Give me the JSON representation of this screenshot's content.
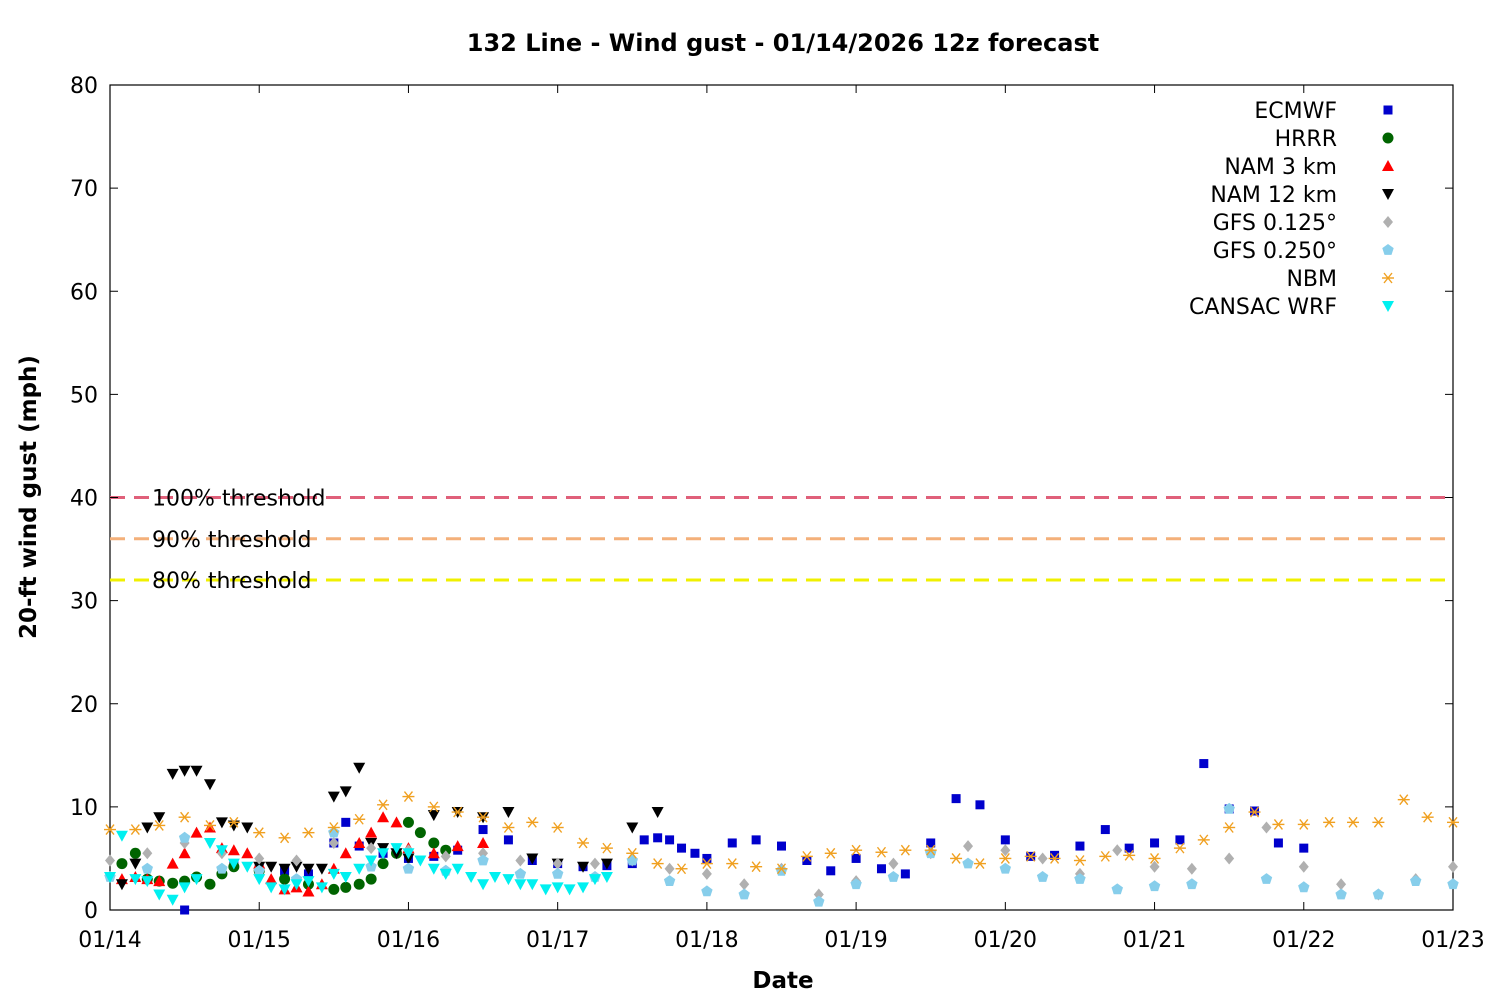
{
  "chart_data": {
    "type": "scatter",
    "title": "132 Line - Wind gust - 01/14/2026 12z forecast",
    "xlabel": "Date",
    "ylabel": "20-ft wind gust (mph)",
    "xlim": [
      "01/14",
      "01/23"
    ],
    "ylim": [
      0,
      80
    ],
    "x_ticks": [
      "01/14",
      "01/15",
      "01/16",
      "01/17",
      "01/18",
      "01/19",
      "01/20",
      "01/21",
      "01/22",
      "01/23"
    ],
    "y_ticks": [
      0,
      10,
      20,
      30,
      40,
      50,
      60,
      70,
      80
    ],
    "grid": false,
    "legend_position": "top-right",
    "thresholds": [
      {
        "label": "100% threshold",
        "value": 40,
        "color": "#e0607a"
      },
      {
        "label": "90% threshold",
        "value": 36,
        "color": "#f4b07a"
      },
      {
        "label": "80% threshold",
        "value": 32,
        "color": "#f0f000"
      }
    ],
    "series": [
      {
        "name": "ECMWF",
        "marker": "square",
        "color": "#0000cc",
        "x": [
          0.5,
          0.83,
          1.0,
          1.17,
          1.33,
          1.5,
          1.58,
          1.67,
          1.83,
          2.0,
          2.17,
          2.33,
          2.5,
          2.67,
          2.83,
          3.0,
          3.17,
          3.33,
          3.5,
          3.58,
          3.67,
          3.75,
          3.83,
          3.92,
          4.0,
          4.17,
          4.33,
          4.5,
          4.67,
          4.83,
          5.0,
          5.17,
          5.33,
          5.5,
          5.67,
          5.83,
          6.0,
          6.17,
          6.33,
          6.5,
          6.67,
          6.83,
          7.0,
          7.17,
          7.33,
          7.5,
          7.67,
          7.83,
          8.0
        ],
        "y": [
          0,
          4.5,
          4.2,
          3.8,
          3.5,
          6.5,
          8.5,
          6.2,
          5.5,
          5.0,
          5.2,
          5.8,
          7.8,
          6.8,
          4.8,
          4.5,
          4.2,
          4.3,
          4.5,
          6.8,
          7.0,
          6.8,
          6.0,
          5.5,
          5.0,
          6.5,
          6.8,
          6.2,
          4.8,
          3.8,
          5.0,
          4.0,
          3.5,
          6.5,
          10.8,
          10.2,
          6.8,
          5.2,
          5.3,
          6.2,
          7.8,
          6.0,
          6.5,
          6.8,
          14.2,
          9.8,
          9.6,
          6.5,
          6.0
        ]
      },
      {
        "name": "HRRR",
        "marker": "circle",
        "color": "#006400",
        "x": [
          0.08,
          0.17,
          0.25,
          0.33,
          0.42,
          0.5,
          0.58,
          0.67,
          0.75,
          0.83,
          1.0,
          1.17,
          1.33,
          1.5,
          1.58,
          1.67,
          1.75,
          1.83,
          1.92,
          2.0,
          2.08,
          2.17,
          2.25
        ],
        "y": [
          4.5,
          5.5,
          3.0,
          2.8,
          2.6,
          2.8,
          3.2,
          2.5,
          3.5,
          4.2,
          3.8,
          3.0,
          2.5,
          2.0,
          2.2,
          2.5,
          3.0,
          4.5,
          5.5,
          8.5,
          7.5,
          6.5,
          5.8
        ]
      },
      {
        "name": "NAM 3 km",
        "marker": "triangle-up",
        "color": "#ff0000",
        "x": [
          0.08,
          0.17,
          0.25,
          0.33,
          0.42,
          0.5,
          0.58,
          0.67,
          0.75,
          0.83,
          0.92,
          1.0,
          1.08,
          1.17,
          1.25,
          1.33,
          1.42,
          1.5,
          1.58,
          1.67,
          1.75,
          1.83,
          1.92,
          2.0,
          2.17,
          2.33,
          2.5
        ],
        "y": [
          3.0,
          3.2,
          3.0,
          2.8,
          4.5,
          5.5,
          7.5,
          8.0,
          6.0,
          5.8,
          5.5,
          4.5,
          3.0,
          2.0,
          2.2,
          1.8,
          2.5,
          4.0,
          5.5,
          6.5,
          7.5,
          9.0,
          8.5,
          6.0,
          5.5,
          6.2,
          6.5
        ]
      },
      {
        "name": "NAM 12 km",
        "marker": "triangle-down",
        "color": "#000000",
        "x": [
          0.08,
          0.17,
          0.25,
          0.33,
          0.42,
          0.5,
          0.58,
          0.67,
          0.75,
          0.83,
          0.92,
          1.0,
          1.08,
          1.17,
          1.25,
          1.33,
          1.42,
          1.5,
          1.58,
          1.67,
          1.75,
          1.83,
          1.92,
          2.0,
          2.17,
          2.33,
          2.5,
          2.67,
          2.83,
          3.0,
          3.17,
          3.33,
          3.5,
          3.67
        ],
        "y": [
          2.5,
          4.5,
          8.0,
          9.0,
          13.2,
          13.5,
          13.5,
          12.2,
          8.5,
          8.2,
          8.0,
          4.2,
          4.2,
          4.0,
          4.2,
          4.0,
          4.0,
          11.0,
          11.5,
          13.8,
          6.5,
          6.0,
          5.5,
          5.0,
          9.2,
          9.5,
          9.0,
          9.5,
          5.0,
          4.5,
          4.2,
          4.5,
          8.0,
          9.5
        ]
      },
      {
        "name": "GFS 0.125°",
        "marker": "diamond",
        "color": "#b0b0b0",
        "x": [
          0.0,
          0.25,
          0.5,
          0.75,
          1.0,
          1.25,
          1.5,
          1.75,
          2.0,
          2.25,
          2.5,
          2.75,
          3.0,
          3.25,
          3.5,
          3.75,
          4.0,
          4.25,
          4.5,
          4.75,
          5.0,
          5.25,
          5.5,
          5.75,
          6.0,
          6.25,
          6.5,
          6.75,
          7.0,
          7.25,
          7.5,
          7.75,
          8.0,
          8.25,
          8.5,
          8.75,
          9.0
        ],
        "y": [
          4.8,
          5.5,
          6.5,
          5.5,
          5.0,
          4.8,
          6.5,
          6.0,
          5.8,
          5.2,
          5.5,
          4.8,
          4.5,
          4.5,
          4.8,
          4.0,
          3.5,
          2.5,
          4.0,
          1.5,
          2.8,
          4.5,
          5.5,
          6.2,
          5.8,
          5.0,
          3.5,
          5.8,
          4.2,
          4.0,
          5.0,
          8.0,
          4.2,
          2.5,
          1.5,
          3.0,
          4.2
        ]
      },
      {
        "name": "GFS 0.250°",
        "marker": "pentagon",
        "color": "#87ceeb",
        "x": [
          0.0,
          0.25,
          0.5,
          0.75,
          1.0,
          1.25,
          1.5,
          1.75,
          2.0,
          2.25,
          2.5,
          2.75,
          3.0,
          3.25,
          3.5,
          3.75,
          4.0,
          4.25,
          4.5,
          4.75,
          5.0,
          5.25,
          5.5,
          5.75,
          6.0,
          6.25,
          6.5,
          6.75,
          7.0,
          7.25,
          7.5,
          7.75,
          8.0,
          8.25,
          8.5,
          8.75,
          9.0
        ],
        "y": [
          3.2,
          4.0,
          7.0,
          4.0,
          3.8,
          3.0,
          7.5,
          4.2,
          4.0,
          3.8,
          4.8,
          3.5,
          3.5,
          3.2,
          4.8,
          2.8,
          1.8,
          1.5,
          3.8,
          0.8,
          2.5,
          3.2,
          5.5,
          4.5,
          4.0,
          3.2,
          3.0,
          2.0,
          2.3,
          2.5,
          9.8,
          3.0,
          2.2,
          1.5,
          1.5,
          2.8,
          2.5
        ]
      },
      {
        "name": "NBM",
        "marker": "asterisk",
        "color": "#f0a020",
        "x": [
          0.0,
          0.17,
          0.33,
          0.5,
          0.67,
          0.83,
          1.0,
          1.17,
          1.33,
          1.5,
          1.67,
          1.83,
          2.0,
          2.17,
          2.33,
          2.5,
          2.67,
          2.83,
          3.0,
          3.17,
          3.33,
          3.5,
          3.67,
          3.83,
          4.0,
          4.17,
          4.33,
          4.5,
          4.67,
          4.83,
          5.0,
          5.17,
          5.33,
          5.5,
          5.67,
          5.83,
          6.0,
          6.17,
          6.33,
          6.5,
          6.67,
          6.83,
          7.0,
          7.17,
          7.33,
          7.5,
          7.67,
          7.83,
          8.0,
          8.17,
          8.33,
          8.5,
          8.67,
          8.83,
          9.0
        ],
        "y": [
          7.8,
          7.8,
          8.2,
          9.0,
          8.2,
          8.5,
          7.5,
          7.0,
          7.5,
          8.0,
          8.8,
          10.2,
          11.0,
          10.0,
          9.5,
          9.0,
          8.0,
          8.5,
          8.0,
          6.5,
          6.0,
          5.5,
          4.5,
          4.0,
          4.5,
          4.5,
          4.2,
          4.0,
          5.2,
          5.5,
          5.8,
          5.6,
          5.8,
          5.8,
          5.0,
          4.5,
          5.0,
          5.2,
          5.0,
          4.8,
          5.2,
          5.3,
          5.0,
          6.0,
          6.8,
          8.0,
          9.5,
          8.3,
          8.3,
          8.5,
          8.5,
          8.5,
          10.7,
          9.0,
          8.5
        ]
      },
      {
        "name": "CANSAC WRF",
        "marker": "triangle-down",
        "color": "#00f0f0",
        "x": [
          0.0,
          0.08,
          0.17,
          0.25,
          0.33,
          0.42,
          0.5,
          0.58,
          0.67,
          0.75,
          0.83,
          0.92,
          1.0,
          1.08,
          1.17,
          1.25,
          1.33,
          1.42,
          1.5,
          1.58,
          1.67,
          1.75,
          1.83,
          1.92,
          2.0,
          2.08,
          2.17,
          2.25,
          2.33,
          2.42,
          2.5,
          2.58,
          2.67,
          2.75,
          2.83,
          2.92,
          3.0,
          3.08,
          3.17,
          3.25,
          3.33
        ],
        "y": [
          3.2,
          7.2,
          3.0,
          2.8,
          1.5,
          1.0,
          2.2,
          3.0,
          6.5,
          5.8,
          4.5,
          4.2,
          3.0,
          2.2,
          2.0,
          2.5,
          2.8,
          2.2,
          3.5,
          3.2,
          4.0,
          4.8,
          5.5,
          6.0,
          5.5,
          4.8,
          4.0,
          3.5,
          4.0,
          3.2,
          2.5,
          3.2,
          3.0,
          2.5,
          2.5,
          2.0,
          2.2,
          2.0,
          2.2,
          3.0,
          3.2
        ]
      }
    ]
  }
}
